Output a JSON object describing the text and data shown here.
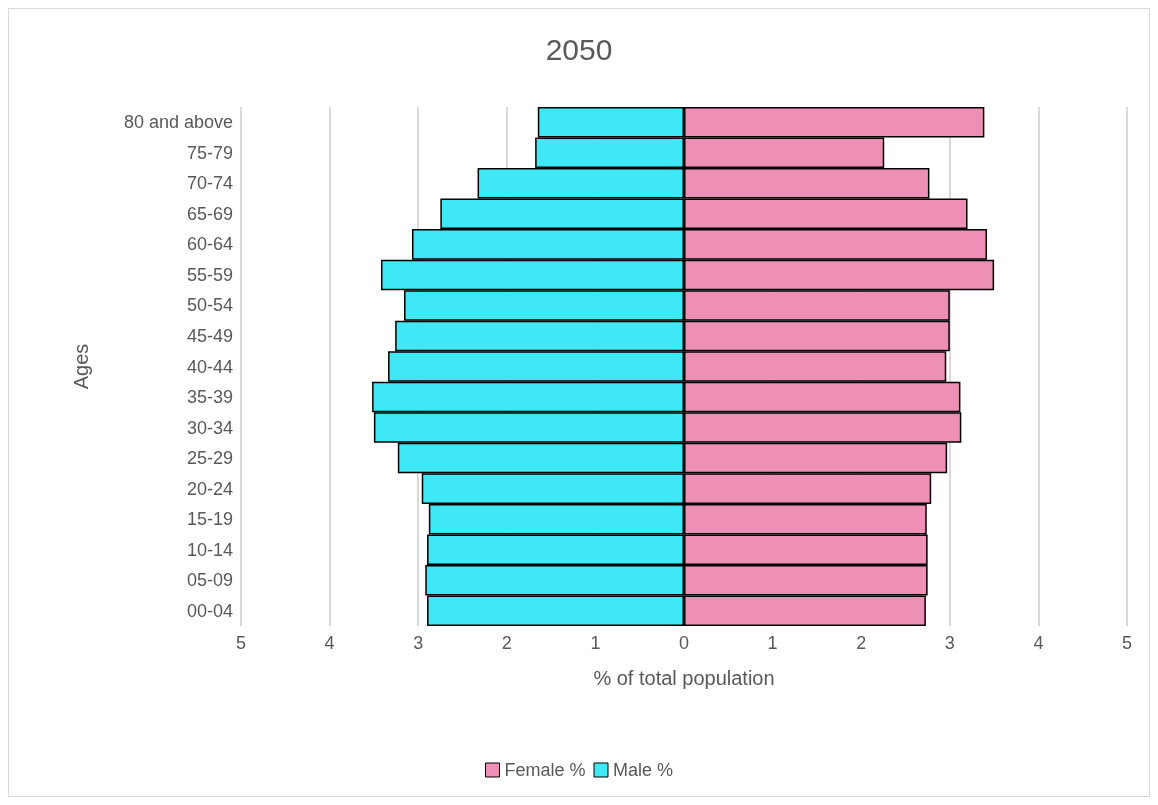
{
  "chart_data": {
    "type": "bar",
    "orientation": "horizontal",
    "stacked": true,
    "title": "2050",
    "xlabel": "% of total population",
    "ylabel": "Ages",
    "categories": [
      "80 and above",
      "75-79",
      "70-74",
      "65-69",
      "60-64",
      "55-59",
      "50-54",
      "45-49",
      "40-44",
      "35-39",
      "30-34",
      "25-29",
      "20-24",
      "15-19",
      "10-14",
      "05-09",
      "00-04"
    ],
    "series": [
      {
        "name": "Female %",
        "color": "#ee8fb6",
        "values": [
          3.39,
          2.26,
          2.77,
          3.2,
          3.42,
          3.5,
          3.0,
          3.0,
          2.96,
          3.12,
          3.13,
          2.97,
          2.79,
          2.74,
          2.75,
          2.75,
          2.73
        ]
      },
      {
        "name": "Male %",
        "color": "#3ee8f4",
        "values": [
          -1.65,
          -1.68,
          -2.33,
          -2.75,
          -3.07,
          -3.42,
          -3.16,
          -3.26,
          -3.34,
          -3.52,
          -3.5,
          -3.23,
          -2.96,
          -2.88,
          -2.9,
          -2.92,
          -2.9
        ]
      }
    ],
    "xlim": [
      -5,
      5
    ],
    "xticks": [
      {
        "value": -5,
        "label": "5"
      },
      {
        "value": -4,
        "label": "4"
      },
      {
        "value": -3,
        "label": "3"
      },
      {
        "value": -2,
        "label": "2"
      },
      {
        "value": -1,
        "label": "1"
      },
      0,
      1,
      2,
      3,
      4,
      5
    ],
    "grid": "x",
    "legend": "bottom"
  }
}
